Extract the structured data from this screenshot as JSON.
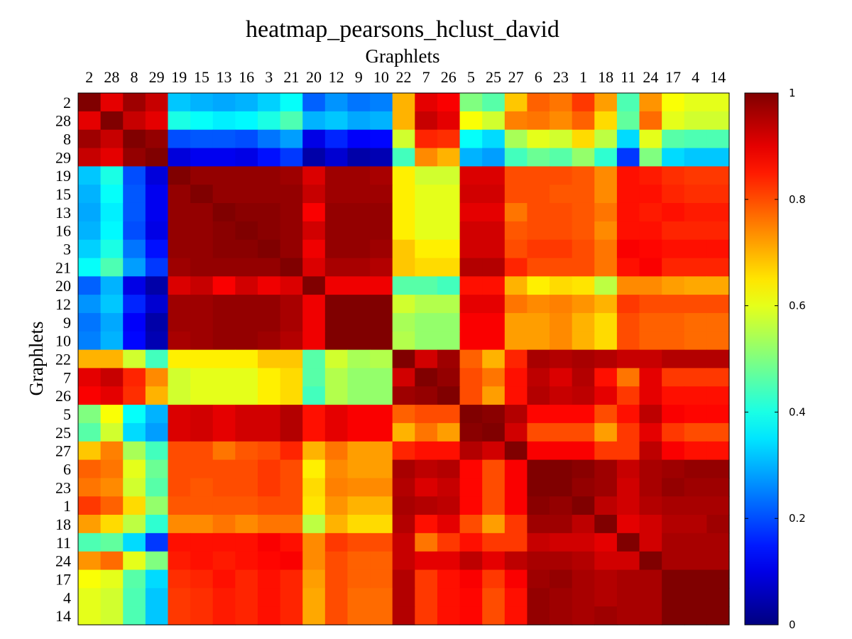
{
  "chart_data": {
    "type": "heatmap",
    "title": "heatmap_pearsons_hclust_david",
    "xlabel": "Graphlets",
    "ylabel": "Graphlets",
    "x_labels": [
      "2",
      "28",
      "8",
      "29",
      "19",
      "15",
      "13",
      "16",
      "3",
      "21",
      "20",
      "12",
      "9",
      "10",
      "22",
      "7",
      "26",
      "5",
      "25",
      "27",
      "6",
      "23",
      "1",
      "18",
      "11",
      "24",
      "17",
      "4",
      "14"
    ],
    "y_labels": [
      "2",
      "28",
      "8",
      "29",
      "19",
      "15",
      "13",
      "16",
      "3",
      "21",
      "20",
      "12",
      "9",
      "10",
      "22",
      "7",
      "26",
      "5",
      "25",
      "27",
      "6",
      "23",
      "1",
      "18",
      "11",
      "24",
      "17",
      "4",
      "14"
    ],
    "colorbar": {
      "min": 0,
      "max": 1,
      "ticks": [
        "0",
        "0.2",
        "0.4",
        "0.6",
        "0.8",
        "1"
      ],
      "colormap": "jet"
    },
    "values": [
      [
        1.0,
        0.9,
        0.97,
        0.93,
        0.32,
        0.3,
        0.29,
        0.3,
        0.33,
        0.38,
        0.22,
        0.27,
        0.24,
        0.25,
        0.7,
        0.9,
        0.88,
        0.5,
        0.46,
        0.68,
        0.78,
        0.76,
        0.82,
        0.72,
        0.45,
        0.73,
        0.62,
        0.6,
        0.6
      ],
      [
        0.9,
        1.0,
        0.93,
        0.9,
        0.4,
        0.38,
        0.36,
        0.37,
        0.4,
        0.45,
        0.3,
        0.32,
        0.29,
        0.3,
        0.7,
        0.93,
        0.9,
        0.62,
        0.58,
        0.75,
        0.76,
        0.74,
        0.78,
        0.66,
        0.47,
        0.77,
        0.6,
        0.58,
        0.58
      ],
      [
        0.97,
        0.93,
        1.0,
        0.98,
        0.2,
        0.21,
        0.21,
        0.2,
        0.24,
        0.28,
        0.1,
        0.16,
        0.12,
        0.13,
        0.58,
        0.84,
        0.83,
        0.38,
        0.34,
        0.54,
        0.6,
        0.58,
        0.66,
        0.56,
        0.34,
        0.6,
        0.46,
        0.45,
        0.45
      ],
      [
        0.93,
        0.9,
        0.98,
        1.0,
        0.09,
        0.11,
        0.11,
        0.1,
        0.14,
        0.18,
        0.04,
        0.08,
        0.04,
        0.05,
        0.44,
        0.74,
        0.7,
        0.3,
        0.28,
        0.44,
        0.48,
        0.46,
        0.52,
        0.42,
        0.18,
        0.5,
        0.34,
        0.32,
        0.32
      ],
      [
        0.32,
        0.4,
        0.2,
        0.09,
        1.0,
        0.98,
        0.98,
        0.98,
        0.98,
        0.97,
        0.91,
        0.97,
        0.97,
        0.96,
        0.64,
        0.58,
        0.58,
        0.91,
        0.91,
        0.8,
        0.8,
        0.8,
        0.79,
        0.74,
        0.86,
        0.85,
        0.83,
        0.82,
        0.82
      ],
      [
        0.3,
        0.38,
        0.21,
        0.11,
        0.98,
        1.0,
        0.98,
        0.98,
        0.98,
        0.98,
        0.93,
        0.97,
        0.97,
        0.97,
        0.64,
        0.6,
        0.6,
        0.92,
        0.92,
        0.8,
        0.8,
        0.79,
        0.79,
        0.74,
        0.86,
        0.86,
        0.84,
        0.83,
        0.83
      ],
      [
        0.29,
        0.36,
        0.21,
        0.11,
        0.98,
        0.98,
        1.0,
        0.99,
        0.99,
        0.98,
        0.88,
        0.98,
        0.98,
        0.98,
        0.64,
        0.6,
        0.6,
        0.9,
        0.9,
        0.76,
        0.8,
        0.8,
        0.79,
        0.76,
        0.86,
        0.85,
        0.86,
        0.85,
        0.85
      ],
      [
        0.3,
        0.37,
        0.2,
        0.1,
        0.98,
        0.98,
        0.99,
        1.0,
        0.99,
        0.98,
        0.92,
        0.98,
        0.98,
        0.98,
        0.64,
        0.6,
        0.6,
        0.92,
        0.92,
        0.79,
        0.8,
        0.8,
        0.79,
        0.74,
        0.86,
        0.86,
        0.84,
        0.84,
        0.84
      ],
      [
        0.33,
        0.4,
        0.24,
        0.14,
        0.98,
        0.98,
        0.99,
        0.99,
        1.0,
        0.98,
        0.89,
        0.98,
        0.98,
        0.97,
        0.68,
        0.64,
        0.64,
        0.92,
        0.92,
        0.8,
        0.82,
        0.82,
        0.8,
        0.76,
        0.88,
        0.87,
        0.86,
        0.86,
        0.86
      ],
      [
        0.38,
        0.45,
        0.28,
        0.18,
        0.97,
        0.98,
        0.98,
        0.98,
        0.98,
        1.0,
        0.91,
        0.96,
        0.96,
        0.95,
        0.68,
        0.66,
        0.66,
        0.95,
        0.95,
        0.84,
        0.8,
        0.8,
        0.8,
        0.76,
        0.86,
        0.88,
        0.84,
        0.84,
        0.84
      ],
      [
        0.22,
        0.3,
        0.1,
        0.04,
        0.91,
        0.93,
        0.88,
        0.92,
        0.89,
        0.91,
        1.0,
        0.89,
        0.89,
        0.89,
        0.46,
        0.46,
        0.44,
        0.86,
        0.86,
        0.7,
        0.64,
        0.66,
        0.65,
        0.56,
        0.74,
        0.74,
        0.72,
        0.71,
        0.71
      ],
      [
        0.27,
        0.32,
        0.16,
        0.08,
        0.97,
        0.97,
        0.98,
        0.98,
        0.98,
        0.96,
        0.89,
        1.0,
        1.0,
        1.0,
        0.58,
        0.55,
        0.55,
        0.9,
        0.9,
        0.76,
        0.74,
        0.75,
        0.73,
        0.7,
        0.82,
        0.8,
        0.8,
        0.8,
        0.8
      ],
      [
        0.24,
        0.29,
        0.12,
        0.04,
        0.97,
        0.97,
        0.98,
        0.98,
        0.98,
        0.96,
        0.89,
        1.0,
        1.0,
        1.0,
        0.54,
        0.52,
        0.52,
        0.88,
        0.88,
        0.72,
        0.72,
        0.74,
        0.7,
        0.66,
        0.8,
        0.78,
        0.78,
        0.77,
        0.77
      ],
      [
        0.25,
        0.3,
        0.13,
        0.05,
        0.96,
        0.97,
        0.98,
        0.98,
        0.97,
        0.95,
        0.89,
        1.0,
        1.0,
        1.0,
        0.55,
        0.52,
        0.52,
        0.88,
        0.88,
        0.72,
        0.72,
        0.74,
        0.7,
        0.66,
        0.8,
        0.78,
        0.78,
        0.77,
        0.77
      ],
      [
        0.7,
        0.7,
        0.58,
        0.44,
        0.64,
        0.64,
        0.64,
        0.64,
        0.68,
        0.68,
        0.46,
        0.58,
        0.54,
        0.55,
        1.0,
        0.92,
        0.97,
        0.78,
        0.7,
        0.84,
        0.96,
        0.95,
        0.96,
        0.95,
        0.93,
        0.93,
        0.95,
        0.95,
        0.95
      ],
      [
        0.9,
        0.93,
        0.84,
        0.74,
        0.58,
        0.6,
        0.6,
        0.6,
        0.64,
        0.66,
        0.46,
        0.55,
        0.52,
        0.52,
        0.92,
        1.0,
        0.98,
        0.8,
        0.76,
        0.86,
        0.94,
        0.91,
        0.95,
        0.86,
        0.76,
        0.9,
        0.82,
        0.82,
        0.82
      ],
      [
        0.88,
        0.9,
        0.83,
        0.7,
        0.58,
        0.6,
        0.6,
        0.6,
        0.64,
        0.66,
        0.44,
        0.55,
        0.52,
        0.52,
        0.97,
        0.98,
        1.0,
        0.8,
        0.72,
        0.86,
        0.95,
        0.93,
        0.94,
        0.9,
        0.82,
        0.9,
        0.86,
        0.86,
        0.86
      ],
      [
        0.5,
        0.62,
        0.38,
        0.3,
        0.91,
        0.92,
        0.9,
        0.92,
        0.92,
        0.95,
        0.86,
        0.9,
        0.88,
        0.88,
        0.78,
        0.8,
        0.8,
        1.0,
        0.99,
        0.95,
        0.87,
        0.87,
        0.87,
        0.8,
        0.86,
        0.94,
        0.88,
        0.87,
        0.87
      ],
      [
        0.46,
        0.58,
        0.34,
        0.28,
        0.91,
        0.92,
        0.9,
        0.92,
        0.92,
        0.95,
        0.86,
        0.9,
        0.88,
        0.88,
        0.7,
        0.76,
        0.72,
        0.99,
        1.0,
        0.92,
        0.8,
        0.8,
        0.8,
        0.72,
        0.82,
        0.9,
        0.82,
        0.8,
        0.8
      ],
      [
        0.68,
        0.75,
        0.54,
        0.44,
        0.8,
        0.8,
        0.76,
        0.79,
        0.8,
        0.84,
        0.7,
        0.76,
        0.72,
        0.72,
        0.84,
        0.86,
        0.86,
        0.95,
        0.92,
        1.0,
        0.88,
        0.88,
        0.88,
        0.82,
        0.82,
        0.94,
        0.88,
        0.86,
        0.86
      ],
      [
        0.78,
        0.76,
        0.6,
        0.48,
        0.8,
        0.8,
        0.8,
        0.8,
        0.82,
        0.8,
        0.64,
        0.74,
        0.72,
        0.72,
        0.96,
        0.94,
        0.95,
        0.87,
        0.8,
        0.88,
        1.0,
        1.0,
        0.99,
        0.97,
        0.93,
        0.96,
        0.97,
        0.98,
        0.98
      ],
      [
        0.76,
        0.74,
        0.58,
        0.46,
        0.8,
        0.79,
        0.8,
        0.8,
        0.82,
        0.8,
        0.66,
        0.75,
        0.74,
        0.74,
        0.95,
        0.91,
        0.93,
        0.87,
        0.8,
        0.88,
        1.0,
        1.0,
        0.98,
        0.97,
        0.92,
        0.96,
        0.98,
        0.97,
        0.97
      ],
      [
        0.82,
        0.78,
        0.66,
        0.52,
        0.79,
        0.79,
        0.79,
        0.79,
        0.8,
        0.8,
        0.65,
        0.73,
        0.7,
        0.7,
        0.96,
        0.95,
        0.94,
        0.87,
        0.8,
        0.88,
        0.99,
        0.98,
        1.0,
        0.94,
        0.92,
        0.95,
        0.96,
        0.96,
        0.96
      ],
      [
        0.72,
        0.66,
        0.56,
        0.42,
        0.74,
        0.74,
        0.76,
        0.74,
        0.76,
        0.76,
        0.56,
        0.7,
        0.66,
        0.66,
        0.95,
        0.86,
        0.9,
        0.8,
        0.72,
        0.82,
        0.97,
        0.97,
        0.94,
        1.0,
        0.9,
        0.92,
        0.95,
        0.95,
        0.97
      ],
      [
        0.45,
        0.47,
        0.34,
        0.18,
        0.86,
        0.86,
        0.86,
        0.86,
        0.88,
        0.86,
        0.74,
        0.82,
        0.8,
        0.8,
        0.93,
        0.76,
        0.82,
        0.86,
        0.82,
        0.82,
        0.93,
        0.92,
        0.92,
        0.9,
        1.0,
        0.92,
        0.96,
        0.96,
        0.96
      ],
      [
        0.73,
        0.77,
        0.6,
        0.5,
        0.85,
        0.86,
        0.85,
        0.86,
        0.87,
        0.88,
        0.74,
        0.8,
        0.78,
        0.78,
        0.93,
        0.9,
        0.9,
        0.94,
        0.9,
        0.94,
        0.96,
        0.96,
        0.95,
        0.92,
        0.92,
        1.0,
        0.96,
        0.96,
        0.96
      ],
      [
        0.62,
        0.6,
        0.46,
        0.34,
        0.83,
        0.84,
        0.86,
        0.84,
        0.86,
        0.84,
        0.72,
        0.8,
        0.78,
        0.78,
        0.95,
        0.82,
        0.86,
        0.88,
        0.82,
        0.88,
        0.97,
        0.98,
        0.96,
        0.95,
        0.96,
        0.96,
        1.0,
        1.0,
        1.0
      ],
      [
        0.6,
        0.58,
        0.45,
        0.32,
        0.82,
        0.83,
        0.85,
        0.84,
        0.86,
        0.84,
        0.71,
        0.8,
        0.77,
        0.77,
        0.95,
        0.82,
        0.86,
        0.87,
        0.8,
        0.86,
        0.98,
        0.97,
        0.96,
        0.95,
        0.96,
        0.96,
        1.0,
        1.0,
        1.0
      ],
      [
        0.6,
        0.58,
        0.45,
        0.32,
        0.82,
        0.83,
        0.85,
        0.84,
        0.86,
        0.84,
        0.71,
        0.8,
        0.77,
        0.77,
        0.95,
        0.82,
        0.86,
        0.87,
        0.8,
        0.86,
        0.98,
        0.97,
        0.96,
        0.97,
        0.96,
        0.96,
        1.0,
        1.0,
        1.0
      ]
    ]
  }
}
